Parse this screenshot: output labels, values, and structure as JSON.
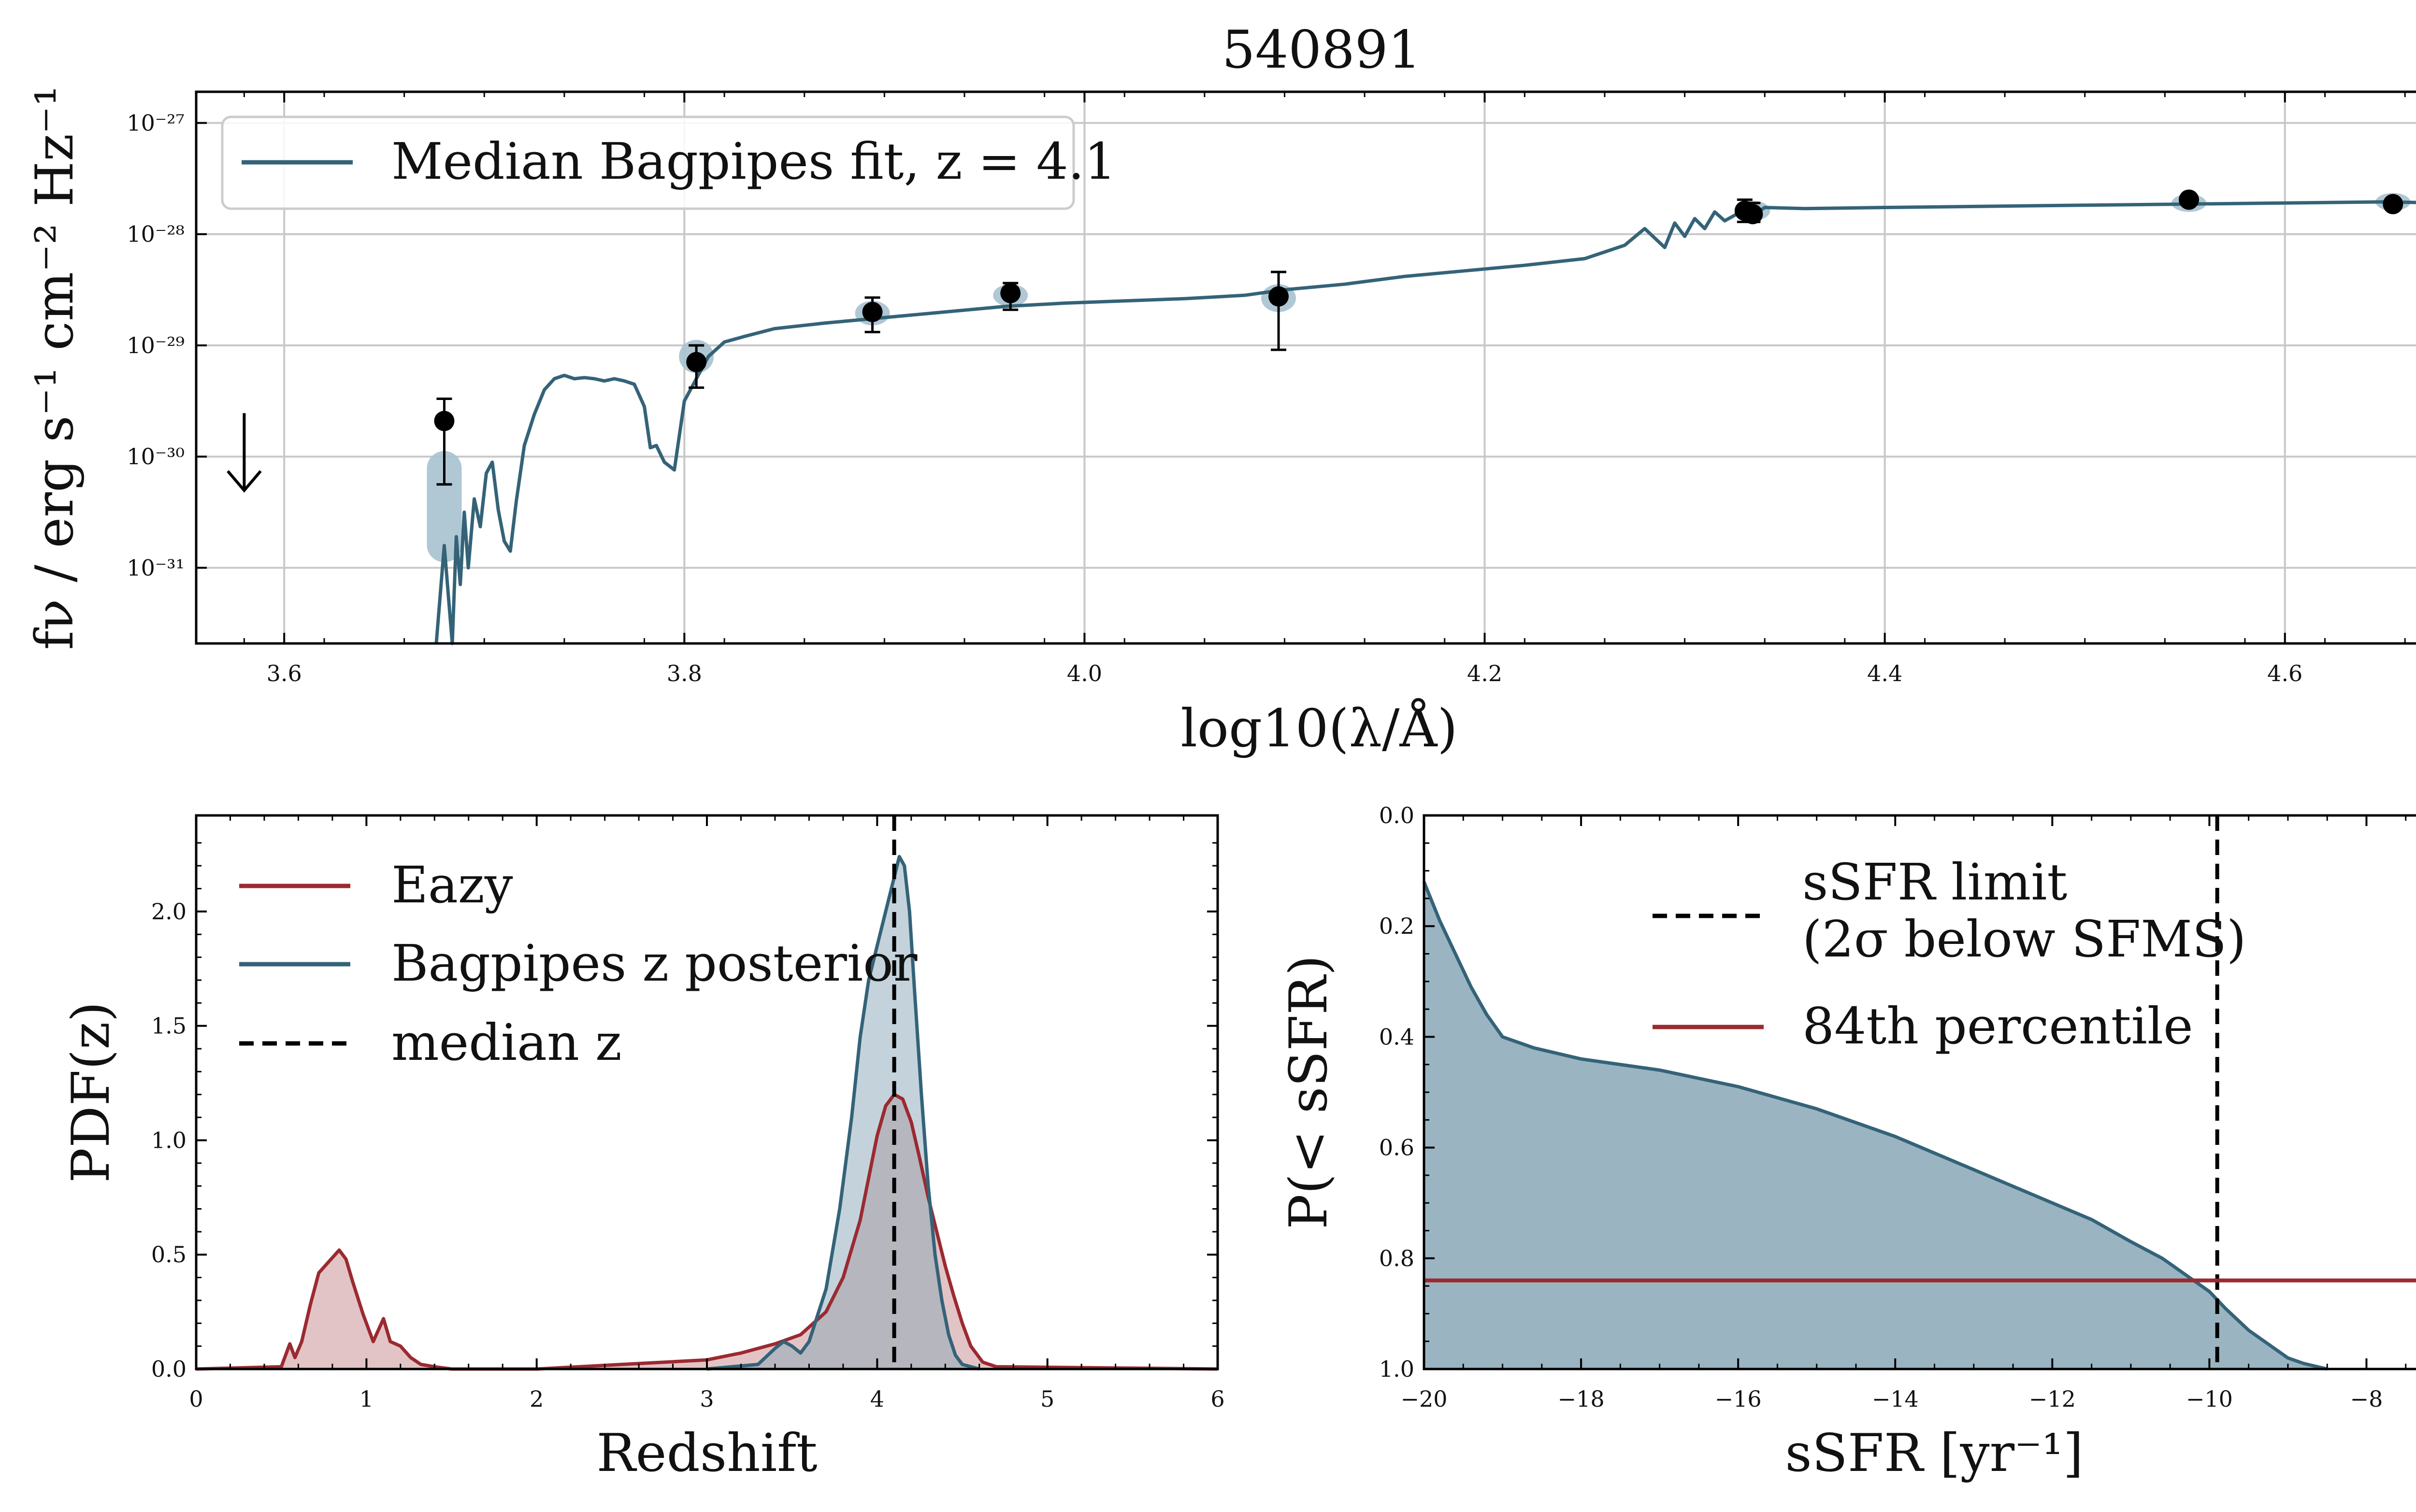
{
  "figure_title": "540891",
  "colors": {
    "bagpipes": "#346378",
    "bagpipes_fill": "#8aa7b7",
    "photometry_band": "#a7c1cf",
    "eazy": "#9b2a30",
    "eazy_fill": "#c78a8e",
    "points": "#000000",
    "limit_line": "#000000",
    "grid": "#c8c8c8"
  },
  "chart_data": [
    {
      "id": "sed",
      "type": "line",
      "title": "540891",
      "xlabel": "log10(λ/Å)",
      "ylabel": "fν / erg s⁻¹ cm⁻² Hz⁻¹",
      "xlim": [
        3.556,
        4.68
      ],
      "ylog_lim": [
        -31.68,
        -26.72
      ],
      "yscale": "log",
      "grid": true,
      "xticks": [
        3.6,
        3.8,
        4.0,
        4.2,
        4.4,
        4.6
      ],
      "xtick_labels": [
        "3.6",
        "3.8",
        "4.0",
        "4.2",
        "4.4",
        "4.6"
      ],
      "yticks_log": [
        -27,
        -28,
        -29,
        -30,
        -31
      ],
      "ytick_labels": [
        "10⁻²⁷",
        "10⁻²⁸",
        "10⁻²⁹",
        "10⁻³⁰",
        "10⁻³¹"
      ],
      "legend": {
        "location": "top-left",
        "entries": [
          {
            "label": "Median Bagpipes fit, z = 4.1",
            "color": "#346378"
          }
        ]
      },
      "series": [
        {
          "name": "Median Bagpipes fit, z = 4.1",
          "x": [
            3.676,
            3.68,
            3.684,
            3.686,
            3.688,
            3.69,
            3.692,
            3.695,
            3.698,
            3.701,
            3.704,
            3.707,
            3.71,
            3.713,
            3.716,
            3.72,
            3.725,
            3.73,
            3.735,
            3.74,
            3.745,
            3.75,
            3.755,
            3.76,
            3.765,
            3.77,
            3.775,
            3.78,
            3.783,
            3.786,
            3.79,
            3.795,
            3.8,
            3.806,
            3.812,
            3.82,
            3.83,
            3.845,
            3.87,
            3.9,
            3.93,
            3.96,
            3.99,
            4.02,
            4.05,
            4.08,
            4.1,
            4.13,
            4.16,
            4.19,
            4.22,
            4.25,
            4.27,
            4.28,
            4.29,
            4.295,
            4.3,
            4.305,
            4.31,
            4.315,
            4.32,
            4.325,
            4.33,
            4.335,
            4.34,
            4.36,
            4.4,
            4.45,
            4.5,
            4.55,
            4.6,
            4.65,
            4.68
          ],
          "log_fnu": [
            -31.68,
            -30.8,
            -31.68,
            -30.72,
            -31.15,
            -30.5,
            -31.0,
            -30.38,
            -30.63,
            -30.15,
            -30.05,
            -30.48,
            -30.76,
            -30.85,
            -30.4,
            -29.9,
            -29.62,
            -29.4,
            -29.3,
            -29.27,
            -29.3,
            -29.29,
            -29.3,
            -29.32,
            -29.3,
            -29.32,
            -29.35,
            -29.55,
            -29.92,
            -29.9,
            -30.05,
            -30.12,
            -29.5,
            -29.3,
            -29.1,
            -28.97,
            -28.92,
            -28.85,
            -28.8,
            -28.75,
            -28.7,
            -28.65,
            -28.62,
            -28.6,
            -28.58,
            -28.55,
            -28.5,
            -28.45,
            -28.38,
            -28.33,
            -28.28,
            -28.22,
            -28.1,
            -27.95,
            -28.12,
            -27.9,
            -28.02,
            -27.86,
            -27.95,
            -27.8,
            -27.88,
            -27.83,
            -27.78,
            -27.82,
            -27.76,
            -27.77,
            -27.76,
            -27.75,
            -27.74,
            -27.73,
            -27.72,
            -27.71,
            -27.72
          ]
        }
      ],
      "photometry": {
        "x": [
          3.68,
          3.806,
          3.894,
          3.963,
          4.097,
          4.33,
          4.334,
          4.552,
          4.654
        ],
        "log_fnu": [
          -29.68,
          -29.15,
          -28.7,
          -28.53,
          -28.56,
          -27.79,
          -27.82,
          -27.69,
          -27.73
        ],
        "log_err_lo": [
          -30.25,
          -29.38,
          -28.88,
          -28.68,
          -29.04,
          -27.89,
          -27.89,
          -27.72,
          -27.76
        ],
        "log_err_hi": [
          -29.48,
          -29.0,
          -28.57,
          -28.44,
          -28.34,
          -27.69,
          -27.72,
          -27.66,
          -27.7
        ]
      },
      "model_photometry": {
        "x": [
          3.68,
          3.806,
          3.894,
          3.963,
          4.097,
          4.334,
          4.552,
          4.654
        ],
        "log_lo": [
          -30.95,
          -29.25,
          -28.82,
          -28.65,
          -28.7,
          -27.88,
          -27.8,
          -27.79
        ],
        "log_hi": [
          -29.95,
          -28.95,
          -28.6,
          -28.45,
          -28.45,
          -27.7,
          -27.64,
          -27.63
        ]
      },
      "upper_limit": {
        "x": 3.58,
        "log_fnu": -30.0,
        "symbol": "↓"
      }
    },
    {
      "id": "redshift_pdf",
      "type": "area",
      "xlabel": "Redshift",
      "ylabel": "PDF(z)",
      "xlim": [
        0,
        6
      ],
      "ylim": [
        0,
        2.42
      ],
      "xticks": [
        0,
        1,
        2,
        3,
        4,
        5,
        6
      ],
      "xtick_labels": [
        "0",
        "1",
        "2",
        "3",
        "4",
        "5",
        "6"
      ],
      "yticks": [
        0.0,
        0.5,
        1.0,
        1.5,
        2.0
      ],
      "ytick_labels": [
        "0.0",
        "0.5",
        "1.0",
        "1.5",
        "2.0"
      ],
      "legend": {
        "location": "top-left",
        "entries": [
          {
            "label": "Eazy",
            "color": "#9b2a30",
            "style": "solid"
          },
          {
            "label": "Bagpipes z posterior",
            "color": "#346378",
            "style": "solid"
          },
          {
            "label": "median z",
            "color": "#000000",
            "style": "dashed"
          }
        ]
      },
      "series": [
        {
          "name": "Eazy",
          "x": [
            0.0,
            0.5,
            0.55,
            0.58,
            0.62,
            0.67,
            0.72,
            0.78,
            0.84,
            0.88,
            0.92,
            0.98,
            1.04,
            1.1,
            1.14,
            1.2,
            1.26,
            1.32,
            1.4,
            1.5,
            1.7,
            2.0,
            2.5,
            3.0,
            3.2,
            3.4,
            3.55,
            3.7,
            3.8,
            3.9,
            4.0,
            4.05,
            4.1,
            4.15,
            4.2,
            4.25,
            4.3,
            4.35,
            4.4,
            4.45,
            4.5,
            4.55,
            4.62,
            4.7,
            6.0
          ],
          "y": [
            0.0,
            0.01,
            0.11,
            0.05,
            0.12,
            0.28,
            0.42,
            0.47,
            0.52,
            0.48,
            0.38,
            0.24,
            0.12,
            0.22,
            0.12,
            0.1,
            0.05,
            0.02,
            0.01,
            0.0,
            0.0,
            0.0,
            0.02,
            0.04,
            0.07,
            0.11,
            0.15,
            0.25,
            0.4,
            0.65,
            1.02,
            1.15,
            1.2,
            1.18,
            1.08,
            0.92,
            0.75,
            0.6,
            0.45,
            0.32,
            0.2,
            0.1,
            0.03,
            0.01,
            0.0
          ]
        },
        {
          "name": "Bagpipes z posterior",
          "x": [
            3.0,
            3.3,
            3.4,
            3.45,
            3.5,
            3.55,
            3.6,
            3.7,
            3.78,
            3.85,
            3.9,
            3.95,
            4.0,
            4.05,
            4.1,
            4.13,
            4.16,
            4.19,
            4.22,
            4.26,
            4.3,
            4.34,
            4.38,
            4.42,
            4.46,
            4.5,
            4.55,
            4.6
          ],
          "y": [
            0.0,
            0.02,
            0.09,
            0.12,
            0.1,
            0.07,
            0.12,
            0.35,
            0.7,
            1.1,
            1.45,
            1.7,
            1.85,
            2.0,
            2.15,
            2.24,
            2.2,
            2.0,
            1.65,
            1.2,
            0.8,
            0.5,
            0.3,
            0.15,
            0.06,
            0.02,
            0.01,
            0.0
          ]
        }
      ],
      "median_z": 4.1
    },
    {
      "id": "ssfr_cdf",
      "type": "area",
      "xlabel": "sSFR [yr⁻¹]",
      "ylabel": "P(< sSFR)",
      "xlim": [
        -20,
        -7
      ],
      "ylim": [
        1.0,
        0.0
      ],
      "xticks": [
        -20,
        -18,
        -16,
        -14,
        -12,
        -10,
        -8
      ],
      "xtick_labels": [
        "−20",
        "−18",
        "−16",
        "−14",
        "−12",
        "−10",
        "−8"
      ],
      "yticks": [
        0.0,
        0.2,
        0.4,
        0.6,
        0.8,
        1.0
      ],
      "ytick_labels": [
        "0.0",
        "0.2",
        "0.4",
        "0.6",
        "0.8",
        "1.0"
      ],
      "legend": {
        "location": "top-right",
        "entries": [
          {
            "label": "sSFR limit",
            "label_line2": "(2σ below SFMS)",
            "color": "#000000",
            "style": "dashed"
          },
          {
            "label": "84th percentile",
            "color": "#9b2a30",
            "style": "solid"
          }
        ]
      },
      "series": [
        {
          "name": "P(< sSFR)",
          "x": [
            -20.0,
            -19.8,
            -19.6,
            -19.4,
            -19.2,
            -19.0,
            -18.6,
            -18.0,
            -17.0,
            -16.0,
            -15.0,
            -14.0,
            -13.0,
            -12.5,
            -12.0,
            -11.5,
            -11.0,
            -10.6,
            -10.3,
            -10.0,
            -9.8,
            -9.5,
            -9.2,
            -9.0,
            -8.8,
            -8.5
          ],
          "y": [
            0.12,
            0.19,
            0.25,
            0.31,
            0.36,
            0.4,
            0.42,
            0.44,
            0.46,
            0.49,
            0.53,
            0.58,
            0.64,
            0.67,
            0.7,
            0.73,
            0.77,
            0.8,
            0.83,
            0.86,
            0.89,
            0.93,
            0.96,
            0.98,
            0.99,
            1.0
          ]
        }
      ],
      "ssfr_limit": -9.9,
      "percentile_84": 0.84
    }
  ]
}
